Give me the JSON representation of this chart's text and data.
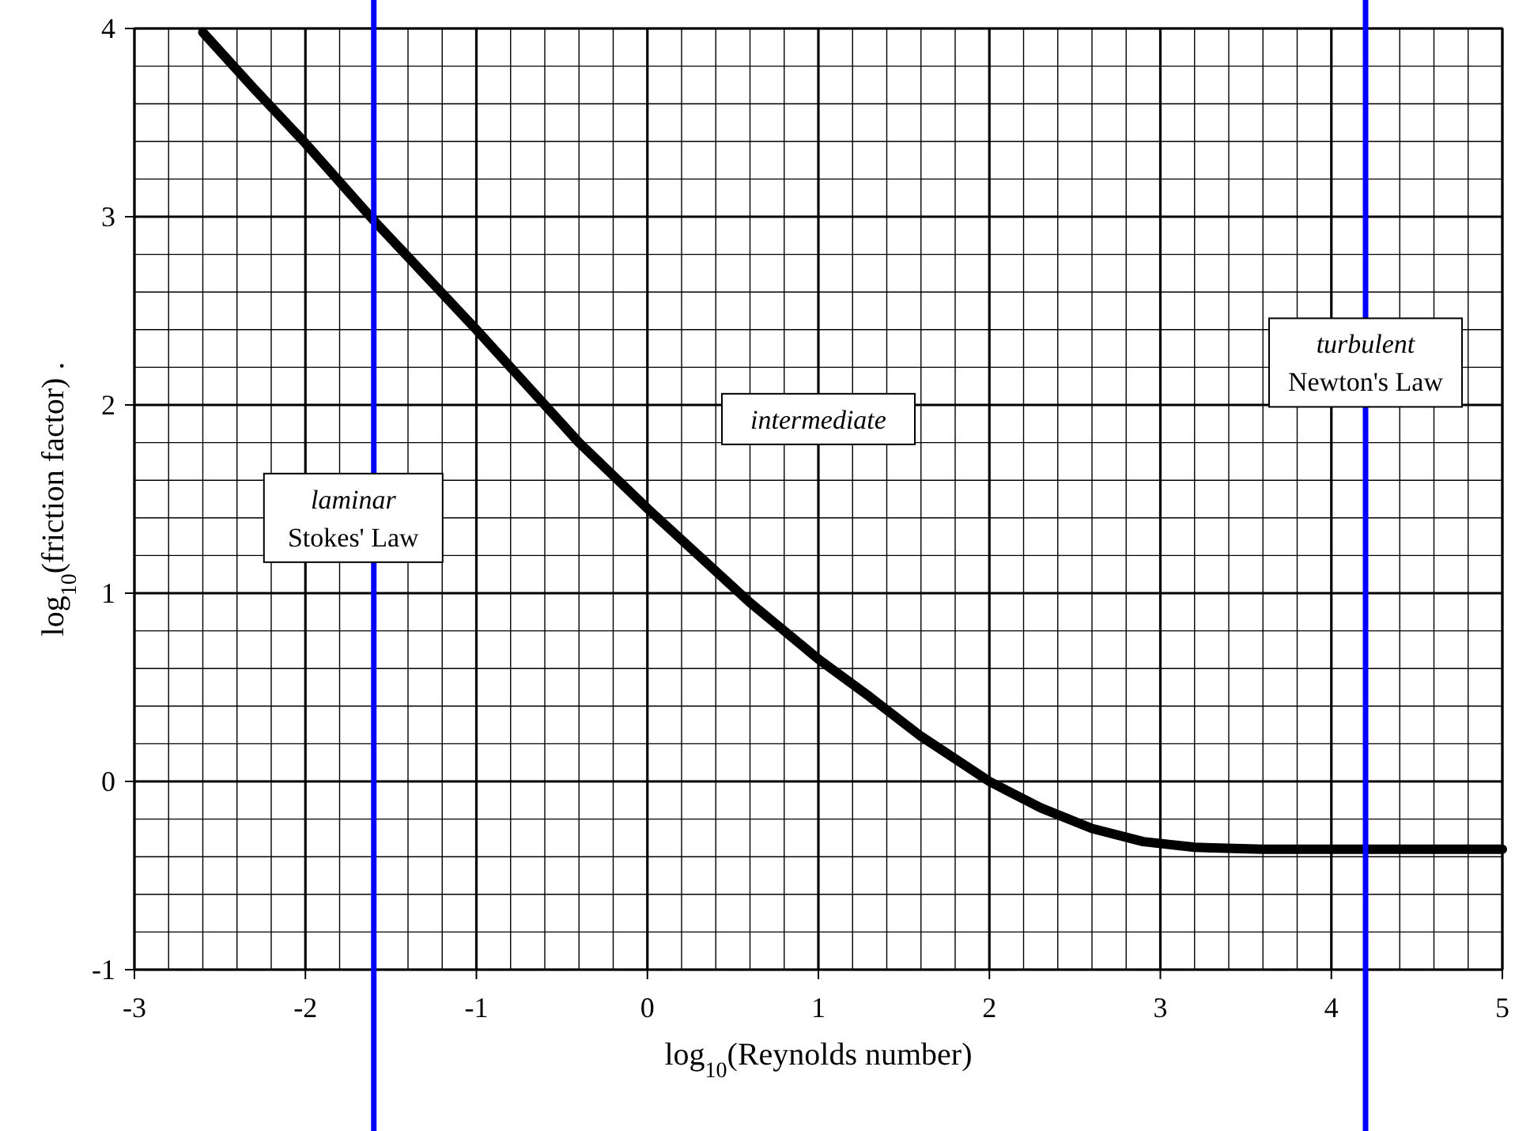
{
  "chart_data": {
    "type": "line",
    "xlabel": "log$_{10}$(Reynolds number)",
    "ylabel": "log$_{10}$(friction factor)   .",
    "xlim": [
      -3,
      5
    ],
    "ylim": [
      -1,
      4
    ],
    "xticks": [
      -3,
      -2,
      -1,
      0,
      1,
      2,
      3,
      4,
      5
    ],
    "yticks": [
      -1,
      0,
      1,
      2,
      3,
      4
    ],
    "grid": true,
    "marker": "none",
    "line_style": "solid",
    "series": [
      {
        "color": "#000000",
        "x": [
          -2.6,
          -2.3,
          -2,
          -1.6,
          -1.3,
          -1,
          -0.7,
          -0.4,
          0,
          0.3,
          0.6,
          1,
          1.3,
          1.6,
          2,
          2.3,
          2.6,
          2.9,
          3.2,
          3.6,
          4,
          4.5,
          5
        ],
        "values": [
          3.98,
          3.68,
          3.39,
          2.98,
          2.69,
          2.4,
          2.1,
          1.8,
          1.45,
          1.2,
          0.95,
          0.65,
          0.45,
          0.24,
          0,
          -0.14,
          -0.25,
          -0.32,
          -0.35,
          -0.36,
          -0.36,
          -0.36,
          -0.36
        ]
      }
    ],
    "ref_lines": [
      {
        "axis": "x",
        "value": -1.6,
        "color": "#0000ff"
      },
      {
        "axis": "x",
        "value": 4.2,
        "color": "#0000ff"
      }
    ],
    "annotations": [
      "laminar\nStokes' Law",
      "intermediate",
      "turbulent\nNewton's Law"
    ]
  }
}
